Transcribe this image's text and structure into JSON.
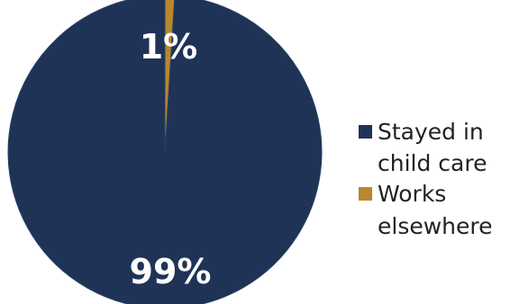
{
  "chart_data": {
    "type": "pie",
    "title": "",
    "categories": [
      "Stayed in child care",
      "Works elsewhere"
    ],
    "values": [
      99,
      1
    ],
    "colors": [
      "#1F3356",
      "#B8872E"
    ],
    "data_labels": [
      "99%",
      "1%"
    ],
    "legend": {
      "placement": "right",
      "entries": [
        {
          "lines": [
            "Stayed in",
            "child care"
          ]
        },
        {
          "lines": [
            "Works",
            "elsewhere"
          ]
        }
      ]
    }
  }
}
